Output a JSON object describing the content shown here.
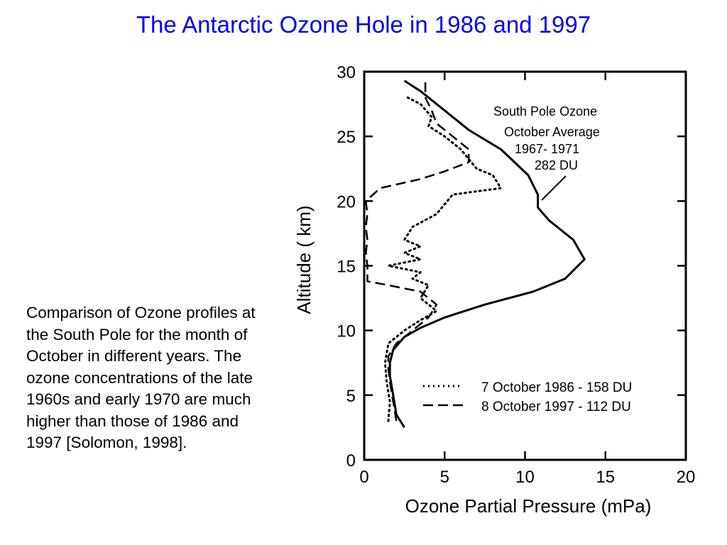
{
  "slide": {
    "title": "The Antarctic Ozone Hole in 1986 and 1997",
    "caption": "Comparison of Ozone profiles at the South Pole for the month of October in different years. The ozone concentrations of the late 1960s and early 1970 are much higher than those of 1986 and 1997 [Solomon, 1998]."
  },
  "chart_data": {
    "type": "line",
    "xlabel": "Ozone Partial Pressure (mPa)",
    "ylabel": "Altitude ( km)",
    "xlim": [
      0,
      20
    ],
    "ylim": [
      0,
      30
    ],
    "xticks": [
      0,
      5,
      10,
      15,
      20
    ],
    "yticks": [
      0,
      5,
      10,
      15,
      20,
      25,
      30
    ],
    "grid": false,
    "annotation": {
      "lines": [
        "South Pole Ozone",
        "October Average",
        "1967- 1971",
        "282 DU"
      ]
    },
    "legend": {
      "placement": "bottom-right",
      "entries": [
        "7 October 1986 - 158 DU",
        "8 October 1997 - 112 DU"
      ]
    },
    "series": [
      {
        "label": "1967-1971",
        "style": "solid",
        "points": [
          [
            2.5,
            2.5
          ],
          [
            2.0,
            3.5
          ],
          [
            1.8,
            5
          ],
          [
            1.6,
            6.5
          ],
          [
            1.6,
            7.5
          ],
          [
            1.8,
            8.5
          ],
          [
            2.5,
            9.5
          ],
          [
            3.5,
            10.2
          ],
          [
            5.0,
            11
          ],
          [
            7.5,
            12
          ],
          [
            10.5,
            13
          ],
          [
            12.5,
            14
          ],
          [
            13.7,
            15.5
          ],
          [
            13.0,
            17
          ],
          [
            11.5,
            18.5
          ],
          [
            10.8,
            19.5
          ],
          [
            10.8,
            20.5
          ],
          [
            10.2,
            22
          ],
          [
            8.5,
            24
          ],
          [
            6.5,
            25.5
          ],
          [
            5.0,
            27
          ],
          [
            3.5,
            28.5
          ],
          [
            2.5,
            29.3
          ]
        ]
      },
      {
        "label": "7 October 1986",
        "style": "dotted",
        "points": [
          [
            1.5,
            3
          ],
          [
            1.6,
            4.5
          ],
          [
            1.4,
            6
          ],
          [
            1.3,
            7.5
          ],
          [
            1.5,
            9
          ],
          [
            2.5,
            10
          ],
          [
            3.5,
            10.8
          ],
          [
            4.5,
            11.5
          ],
          [
            3.5,
            12.5
          ],
          [
            4.0,
            13.5
          ],
          [
            3.0,
            14
          ],
          [
            3.5,
            14.5
          ],
          [
            1.5,
            15
          ],
          [
            3.5,
            15.5
          ],
          [
            2.5,
            16
          ],
          [
            3.5,
            16.5
          ],
          [
            2.5,
            17
          ],
          [
            3.0,
            18
          ],
          [
            4.5,
            19
          ],
          [
            5.5,
            20.5
          ],
          [
            8.5,
            21
          ],
          [
            8.0,
            22
          ],
          [
            7.0,
            22.5
          ],
          [
            6.0,
            24
          ],
          [
            5.0,
            25
          ],
          [
            4.0,
            25.8
          ],
          [
            4.2,
            26.5
          ],
          [
            3.5,
            27.5
          ],
          [
            2.7,
            28
          ]
        ]
      },
      {
        "label": "8 October 1997",
        "style": "dashed",
        "points": [
          [
            2.0,
            3
          ],
          [
            1.8,
            4.5
          ],
          [
            1.6,
            6
          ],
          [
            1.5,
            7
          ],
          [
            1.5,
            8
          ],
          [
            2.0,
            9
          ],
          [
            3.0,
            10
          ],
          [
            4.0,
            11
          ],
          [
            4.5,
            12
          ],
          [
            3.5,
            13
          ],
          [
            1.5,
            13.5
          ],
          [
            0.2,
            13.8
          ],
          [
            0.2,
            15
          ],
          [
            0.1,
            16
          ],
          [
            0.2,
            17
          ],
          [
            0.1,
            18
          ],
          [
            0.2,
            19
          ],
          [
            0.1,
            20
          ],
          [
            1.0,
            21
          ],
          [
            3.5,
            21.7
          ],
          [
            5.0,
            22.3
          ],
          [
            6.5,
            23
          ],
          [
            6.5,
            24
          ],
          [
            5.5,
            25
          ],
          [
            4.5,
            26
          ],
          [
            4.2,
            27
          ],
          [
            3.8,
            28
          ],
          [
            3.8,
            29.5
          ]
        ]
      }
    ]
  }
}
